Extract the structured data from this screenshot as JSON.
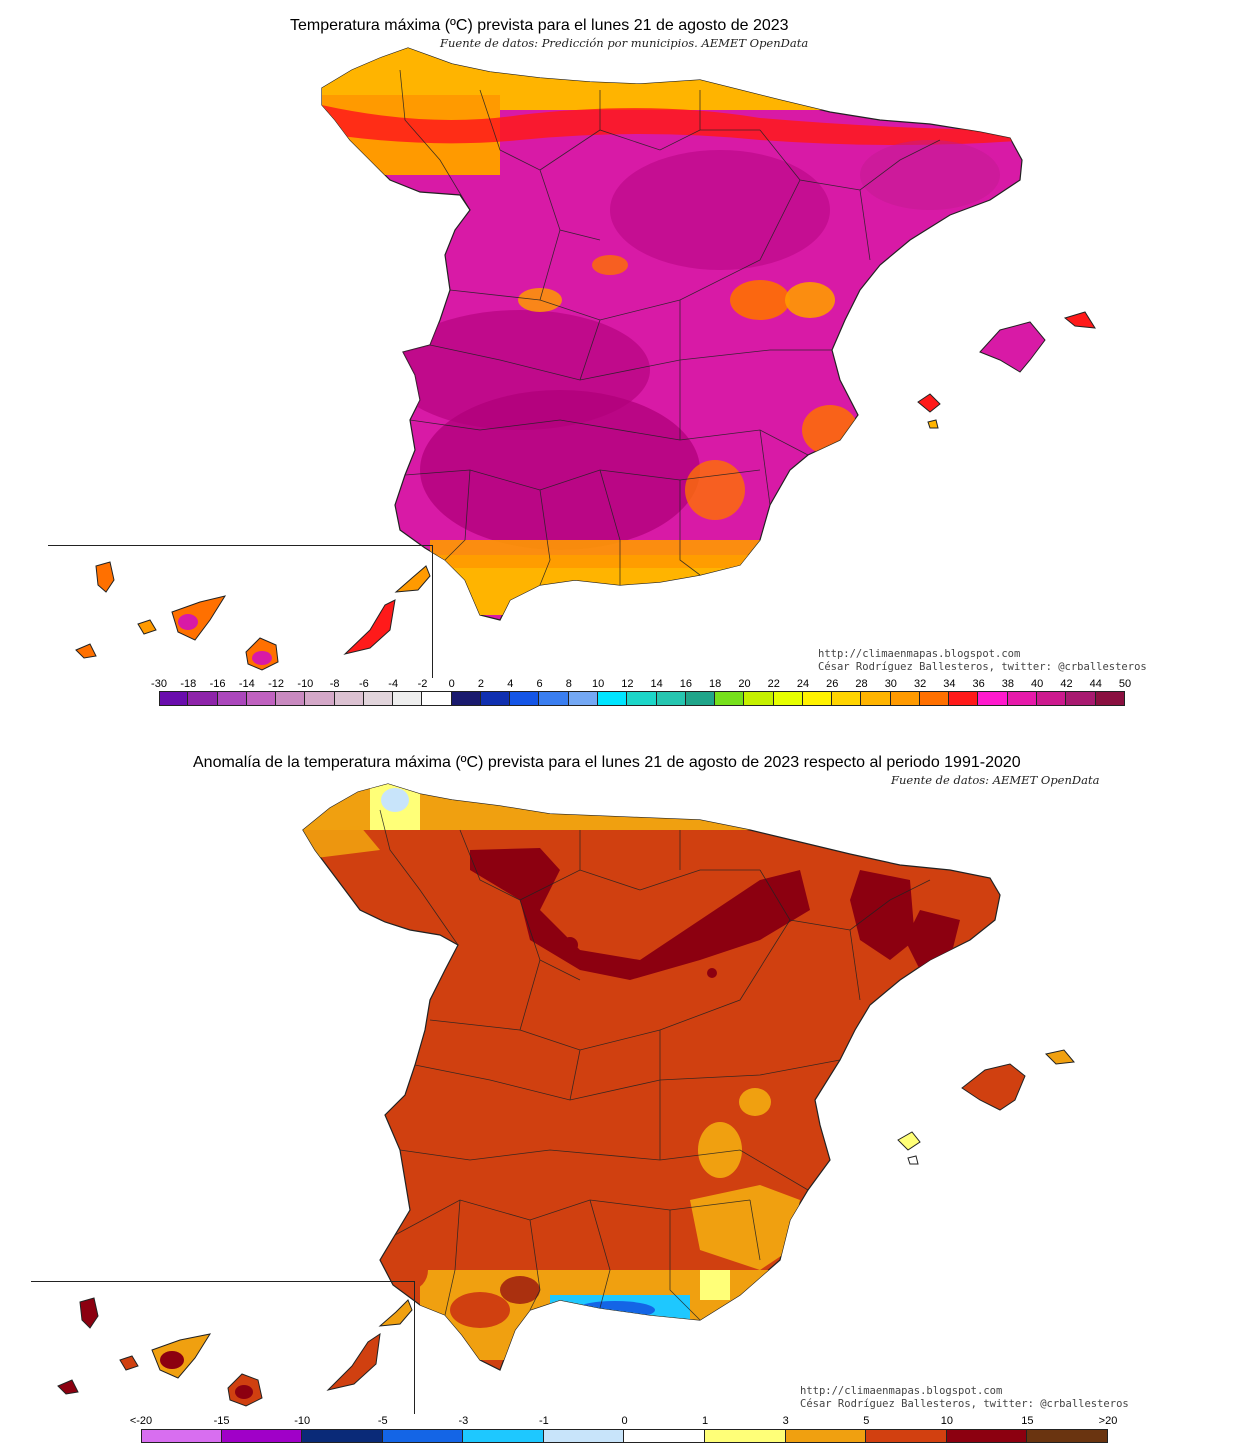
{
  "top": {
    "title": "Temperatura máxima (ºC) prevista para el lunes 21 de agosto de 2023",
    "subtitle": "Fuente de datos: Predicción por municipios. AEMET OpenData",
    "credit_url": "http://climaenmapas.blogspot.com",
    "credit_author": "César Rodríguez Ballesteros, twitter: @crballesteros",
    "legend": {
      "ticks": [
        "-30",
        "-18",
        "-16",
        "-14",
        "-12",
        "-10",
        "-8",
        "-6",
        "-4",
        "-2",
        "0",
        "2",
        "4",
        "6",
        "8",
        "10",
        "12",
        "14",
        "16",
        "18",
        "20",
        "22",
        "24",
        "26",
        "28",
        "30",
        "32",
        "34",
        "36",
        "38",
        "40",
        "42",
        "44",
        "50"
      ],
      "colors": [
        "#6a0dad",
        "#8e24aa",
        "#ab47bc",
        "#c062c0",
        "#c98ac0",
        "#d4a8c8",
        "#dcc2d2",
        "#e2d5dc",
        "#eeeeee",
        "#ffffff",
        "#1a1a6e",
        "#1030b0",
        "#1455e6",
        "#3a7ef0",
        "#74a8f4",
        "#00e5ff",
        "#1dd6c8",
        "#26c6b0",
        "#20a58a",
        "#76e01c",
        "#c5f000",
        "#e6ff00",
        "#fff200",
        "#ffd400",
        "#ffb400",
        "#ff9a00",
        "#ff7000",
        "#ff1a1a",
        "#ff1acd",
        "#e61aaa",
        "#cc1a8e",
        "#a81a70",
        "#8a1040"
      ]
    }
  },
  "bottom": {
    "title": "Anomalía de la temperatura máxima (ºC) prevista para el lunes 21 de agosto de 2023 respecto al periodo 1991-2020",
    "subtitle": "Fuente de datos: AEMET OpenData",
    "credit_url": "http://climaenmapas.blogspot.com",
    "credit_author": "César Rodríguez Ballesteros, twitter: @crballesteros",
    "legend": {
      "ticks": [
        "<-20",
        "-15",
        "-10",
        "-5",
        "-3",
        "-1",
        "0",
        "1",
        "3",
        "5",
        "10",
        "15",
        ">20"
      ],
      "colors": [
        "#d86ef0",
        "#a000c8",
        "#0a2a78",
        "#1465e6",
        "#1ec8ff",
        "#c8e4fa",
        "#ffffff",
        "#ffff78",
        "#f0a010",
        "#d24010",
        "#8c0010",
        "#6a3410"
      ]
    }
  },
  "colors": {
    "top_land": "#d81aa6",
    "top_land_dark": "#b0007a",
    "top_coast_orange": "#ff9a10",
    "top_coast_yellow": "#ffd400",
    "top_red": "#ff1a1a",
    "bottom_land": "#d04010",
    "bottom_dark": "#8c0010",
    "bottom_orange": "#f0a010",
    "bottom_yellow": "#ffff78",
    "bottom_blue": "#1465e6",
    "bottom_cyan": "#1ec8ff",
    "bottom_lightblue": "#c8e4fa"
  }
}
